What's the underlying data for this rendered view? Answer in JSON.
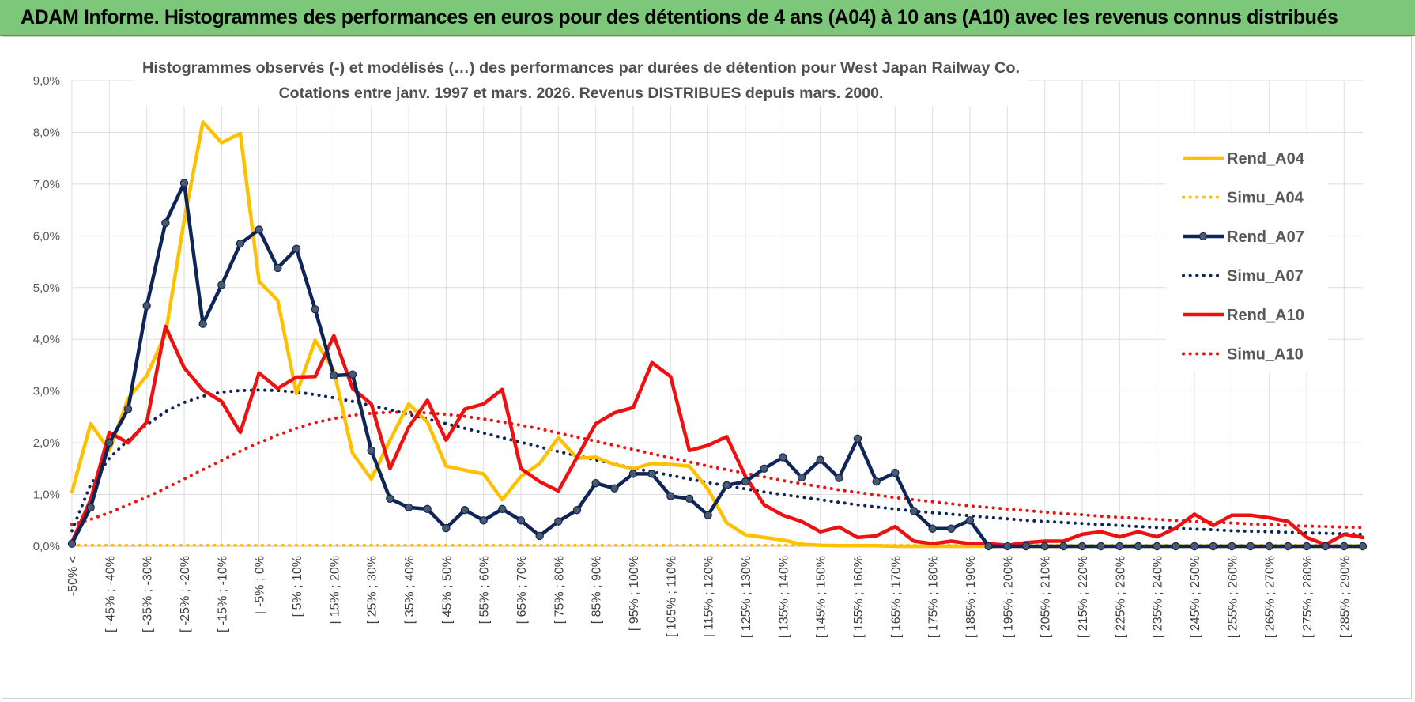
{
  "banner": {
    "title": "ADAM Informe. Histogrammes des performances en euros pour des détentions de 4 ans (A04) à 10 ans (A10) avec les revenus connus distribués"
  },
  "chart_data": {
    "type": "line",
    "title_line1": "Histogrammes observés (-) et modélisés (…) des performances par durées de détention pour West Japan Railway Co.",
    "title_line2": "Cotations entre janv. 1997 et mars. 2026. Revenus DISTRIBUES depuis mars. 2000.",
    "ylim": [
      0,
      9
    ],
    "y_ticks": [
      "0,0%",
      "1,0%",
      "2,0%",
      "3,0%",
      "4,0%",
      "5,0%",
      "6,0%",
      "7,0%",
      "8,0%",
      "9,0%"
    ],
    "x_tick_labels": [
      "-50% <",
      "[ -45% ; -40%",
      "[ -35% ; -30%",
      "[ -25% ; -20%",
      "[ -15% ; -10%",
      "[ -5% ; 0%",
      "[ 5% ; 10%",
      "[ 15% ; 20%",
      "[ 25% ; 30%",
      "[ 35% ; 40%",
      "[ 45% ; 50%",
      "[ 55% ; 60%",
      "[ 65% ; 70%",
      "[ 75% ; 80%",
      "[ 85% ; 90%",
      "[ 95% ; 100%",
      "[ 105% ; 110%",
      "[ 115% ; 120%",
      "[ 125% ; 130%",
      "[ 135% ; 140%",
      "[ 145% ; 150%",
      "[ 155% ; 160%",
      "[ 165% ; 170%",
      "[ 175% ; 180%",
      "[ 185% ; 190%",
      "[ 195% ; 200%",
      "[ 205% ; 210%",
      "[ 215% ; 220%",
      "[ 225% ; 230%",
      "[ 235% ; 240%",
      "[ 245% ; 250%",
      "[ 255% ; 260%",
      "[ 265% ; 270%",
      "[ 275% ; 280%",
      "[ 285% ; 290%"
    ],
    "n_points": 70,
    "series": [
      {
        "name": "Rend_A04",
        "style": "solid",
        "color": "#ffc000",
        "markers": false,
        "values": [
          1.05,
          2.37,
          1.85,
          2.85,
          3.3,
          4.1,
          6.3,
          8.2,
          7.8,
          7.98,
          5.12,
          4.75,
          2.95,
          3.98,
          3.4,
          1.8,
          1.3,
          2.05,
          2.75,
          2.4,
          1.55,
          1.47,
          1.4,
          0.9,
          1.35,
          1.6,
          2.1,
          1.7,
          1.72,
          1.58,
          1.5,
          1.6,
          1.58,
          1.55,
          1.1,
          0.45,
          0.22,
          0.17,
          0.12,
          0.04,
          0.02,
          0.01,
          0.01,
          0.01,
          0,
          0,
          0,
          0,
          0,
          0,
          0,
          0,
          0,
          0,
          0,
          0,
          0,
          0,
          0,
          0,
          0,
          0,
          0,
          0,
          0,
          0,
          0,
          0,
          0,
          0
        ]
      },
      {
        "name": "Simu_A04",
        "style": "dotted",
        "color": "#ffc000",
        "markers": false,
        "values": [
          0.02,
          0.02,
          0.02,
          0.02,
          0.02,
          0.02,
          0.02,
          0.02,
          0.02,
          0.02,
          0.02,
          0.02,
          0.02,
          0.02,
          0.02,
          0.02,
          0.02,
          0.02,
          0.02,
          0.02,
          0.02,
          0.02,
          0.02,
          0.02,
          0.02,
          0.02,
          0.02,
          0.02,
          0.02,
          0.02,
          0.02,
          0.02,
          0.02,
          0.02,
          0.02,
          0.02,
          0.02,
          0.02,
          0.02,
          0.02,
          0.02,
          0.02,
          0.02,
          0.02,
          0.02,
          0.02,
          0.02,
          0.02,
          0.02,
          0.02,
          0.02,
          0.02,
          0.02,
          0.02,
          0.02,
          0.02,
          0.02,
          0.02,
          0.02,
          0.02,
          0.02,
          0.02,
          0.02,
          0.02,
          0.02,
          0.02,
          0.02,
          0.02,
          0.02,
          0.02
        ]
      },
      {
        "name": "Rend_A07",
        "style": "solid",
        "color": "#0f2557",
        "markers": true,
        "values": [
          0.05,
          0.75,
          2.0,
          2.65,
          4.65,
          6.25,
          7.02,
          4.3,
          5.05,
          5.85,
          6.12,
          5.38,
          5.75,
          4.58,
          3.3,
          3.32,
          1.85,
          0.92,
          0.75,
          0.72,
          0.35,
          0.7,
          0.5,
          0.72,
          0.5,
          0.2,
          0.48,
          0.7,
          1.22,
          1.12,
          1.4,
          1.4,
          0.97,
          0.92,
          0.6,
          1.18,
          1.25,
          1.5,
          1.72,
          1.33,
          1.67,
          1.32,
          2.08,
          1.25,
          1.42,
          0.68,
          0.34,
          0.34,
          0.5,
          0,
          0,
          0,
          0,
          0,
          0,
          0,
          0,
          0,
          0,
          0,
          0,
          0,
          0,
          0,
          0,
          0,
          0,
          0,
          0,
          0
        ]
      },
      {
        "name": "Simu_A07",
        "style": "dotted",
        "color": "#0f2557",
        "markers": false,
        "values": [
          0.3,
          1.2,
          1.7,
          2.05,
          2.35,
          2.6,
          2.78,
          2.9,
          2.98,
          3.01,
          3.02,
          3.01,
          2.98,
          2.93,
          2.87,
          2.8,
          2.72,
          2.64,
          2.55,
          2.46,
          2.37,
          2.28,
          2.19,
          2.1,
          2.01,
          1.92,
          1.83,
          1.75,
          1.67,
          1.59,
          1.51,
          1.44,
          1.37,
          1.3,
          1.23,
          1.17,
          1.11,
          1.05,
          1.0,
          0.95,
          0.9,
          0.85,
          0.8,
          0.76,
          0.72,
          0.68,
          0.65,
          0.62,
          0.59,
          0.56,
          0.53,
          0.5,
          0.48,
          0.46,
          0.44,
          0.42,
          0.4,
          0.38,
          0.36,
          0.35,
          0.33,
          0.32,
          0.3,
          0.29,
          0.28,
          0.27,
          0.26,
          0.25,
          0.24,
          0.23
        ]
      },
      {
        "name": "Rend_A10",
        "style": "solid",
        "color": "#ee1111",
        "markers": false,
        "values": [
          0.08,
          0.9,
          2.2,
          2.0,
          2.4,
          4.25,
          3.45,
          3.02,
          2.8,
          2.2,
          3.35,
          3.05,
          3.27,
          3.28,
          4.07,
          3.05,
          2.75,
          1.5,
          2.3,
          2.82,
          2.05,
          2.65,
          2.75,
          3.03,
          1.5,
          1.25,
          1.07,
          1.72,
          2.37,
          2.58,
          2.68,
          3.55,
          3.28,
          1.85,
          1.95,
          2.12,
          1.35,
          0.8,
          0.6,
          0.48,
          0.28,
          0.37,
          0.17,
          0.2,
          0.38,
          0.1,
          0.05,
          0.1,
          0.05,
          0.05,
          0.02,
          0.07,
          0.1,
          0.1,
          0.23,
          0.28,
          0.18,
          0.28,
          0.18,
          0.35,
          0.62,
          0.4,
          0.6,
          0.6,
          0.55,
          0.48,
          0.17,
          0.03,
          0.23,
          0.17
        ]
      },
      {
        "name": "Simu_A10",
        "style": "dotted",
        "color": "#ee1111",
        "markers": false,
        "values": [
          0.42,
          0.52,
          0.65,
          0.8,
          0.95,
          1.12,
          1.3,
          1.48,
          1.66,
          1.84,
          2.0,
          2.15,
          2.28,
          2.39,
          2.47,
          2.53,
          2.57,
          2.59,
          2.59,
          2.58,
          2.55,
          2.51,
          2.46,
          2.4,
          2.34,
          2.27,
          2.19,
          2.11,
          2.03,
          1.95,
          1.87,
          1.79,
          1.71,
          1.63,
          1.55,
          1.48,
          1.41,
          1.34,
          1.27,
          1.21,
          1.15,
          1.09,
          1.04,
          0.99,
          0.94,
          0.9,
          0.86,
          0.82,
          0.78,
          0.75,
          0.72,
          0.69,
          0.66,
          0.63,
          0.61,
          0.58,
          0.56,
          0.54,
          0.52,
          0.5,
          0.48,
          0.46,
          0.45,
          0.43,
          0.42,
          0.4,
          0.39,
          0.38,
          0.37,
          0.36
        ]
      }
    ],
    "legend": [
      "Rend_A04",
      "Simu_A04",
      "Rend_A07",
      "Simu_A07",
      "Rend_A10",
      "Simu_A10"
    ],
    "legend_position": "right"
  }
}
